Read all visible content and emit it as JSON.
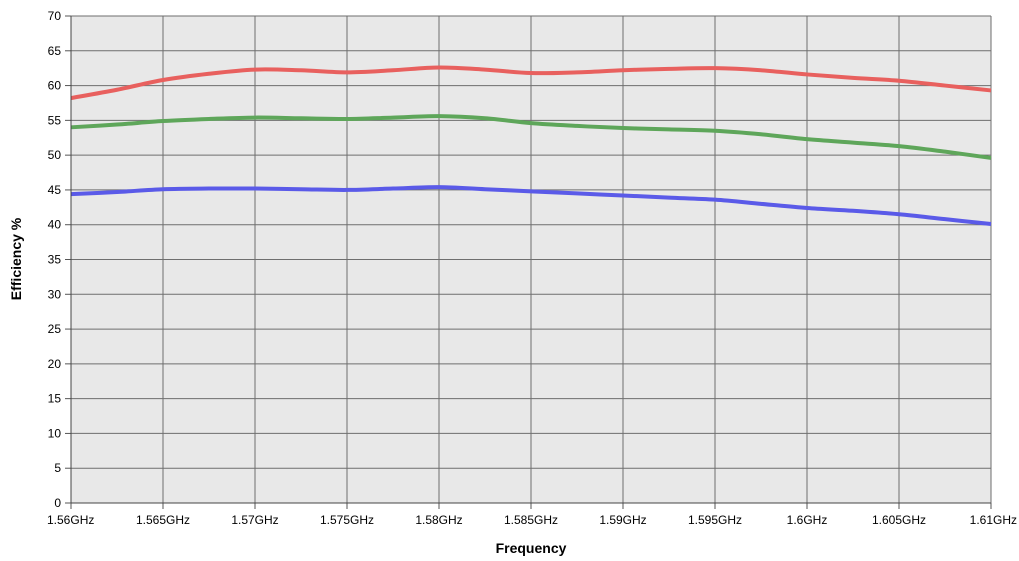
{
  "chart_data": {
    "type": "line",
    "xlabel": "Frequency",
    "ylabel": "Efficiency %",
    "xlim": [
      1.56,
      1.61
    ],
    "ylim": [
      0,
      70
    ],
    "grid": true,
    "x_ticks": [
      {
        "value": 1.56,
        "label": "1.56GHz"
      },
      {
        "value": 1.565,
        "label": "1.565GHz"
      },
      {
        "value": 1.57,
        "label": "1.57GHz"
      },
      {
        "value": 1.575,
        "label": "1.575GHz"
      },
      {
        "value": 1.58,
        "label": "1.58GHz"
      },
      {
        "value": 1.585,
        "label": "1.585GHz"
      },
      {
        "value": 1.59,
        "label": "1.59GHz"
      },
      {
        "value": 1.595,
        "label": "1.595GHz"
      },
      {
        "value": 1.6,
        "label": "1.6GHz"
      },
      {
        "value": 1.605,
        "label": "1.605GHz"
      },
      {
        "value": 1.61,
        "label": "1.61GHz"
      }
    ],
    "y_ticks": [
      {
        "value": 0,
        "label": "0"
      },
      {
        "value": 5,
        "label": "5"
      },
      {
        "value": 10,
        "label": "10"
      },
      {
        "value": 15,
        "label": "15"
      },
      {
        "value": 20,
        "label": "20"
      },
      {
        "value": 25,
        "label": "25"
      },
      {
        "value": 30,
        "label": "30"
      },
      {
        "value": 35,
        "label": "35"
      },
      {
        "value": 40,
        "label": "40"
      },
      {
        "value": 45,
        "label": "45"
      },
      {
        "value": 50,
        "label": "50"
      },
      {
        "value": 55,
        "label": "55"
      },
      {
        "value": 60,
        "label": "60"
      },
      {
        "value": 65,
        "label": "65"
      },
      {
        "value": 70,
        "label": "70"
      }
    ],
    "x": [
      1.56,
      1.5625,
      1.565,
      1.5675,
      1.57,
      1.5725,
      1.575,
      1.5775,
      1.58,
      1.5825,
      1.585,
      1.5875,
      1.59,
      1.5925,
      1.595,
      1.5975,
      1.6,
      1.6025,
      1.605,
      1.6075,
      1.61
    ],
    "series": [
      {
        "color": "#e8605e",
        "values": [
          58.2,
          59.4,
          60.8,
          61.7,
          62.3,
          62.2,
          61.9,
          62.2,
          62.6,
          62.3,
          61.8,
          61.9,
          62.2,
          62.4,
          62.5,
          62.2,
          61.6,
          61.1,
          60.7,
          60.0,
          59.3
        ]
      },
      {
        "color": "#5ea65a",
        "values": [
          54.0,
          54.4,
          54.9,
          55.2,
          55.4,
          55.3,
          55.2,
          55.4,
          55.6,
          55.3,
          54.6,
          54.2,
          53.9,
          53.7,
          53.5,
          53.0,
          52.3,
          51.8,
          51.3,
          50.5,
          49.6
        ]
      },
      {
        "color": "#5a5ae8",
        "values": [
          44.4,
          44.7,
          45.1,
          45.2,
          45.2,
          45.1,
          45.0,
          45.2,
          45.4,
          45.1,
          44.8,
          44.5,
          44.2,
          43.9,
          43.6,
          43.0,
          42.4,
          42.0,
          41.5,
          40.8,
          40.1
        ]
      }
    ]
  }
}
